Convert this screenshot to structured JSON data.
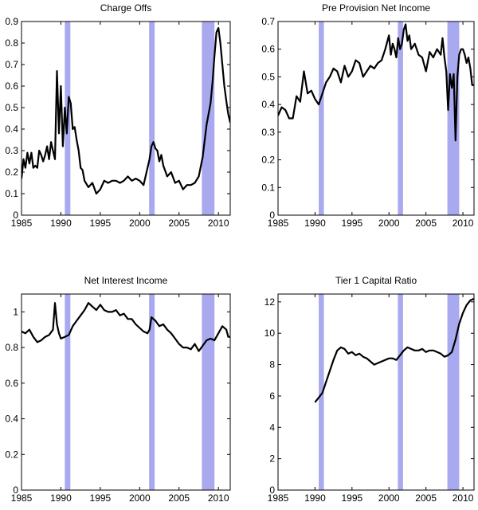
{
  "chart_data": [
    {
      "type": "line",
      "title": "Charge Offs",
      "xlabel": "",
      "ylabel": "",
      "xlim": [
        1985,
        2011.5
      ],
      "ylim": [
        0,
        0.9
      ],
      "xticks": [
        1985,
        1990,
        1995,
        2000,
        2005,
        2010
      ],
      "yticks": [
        0,
        0.1,
        0.2,
        0.3,
        0.4,
        0.5,
        0.6,
        0.7,
        0.8,
        0.9
      ],
      "recessions": [
        [
          1990.5,
          1991.2
        ],
        [
          2001.2,
          2001.9
        ],
        [
          2007.9,
          2009.5
        ]
      ],
      "series": [
        {
          "name": "Charge Offs",
          "x": [
            1985,
            1985.25,
            1985.5,
            1985.75,
            1986,
            1986.25,
            1986.5,
            1986.75,
            1987,
            1987.25,
            1987.5,
            1987.75,
            1988,
            1988.25,
            1988.5,
            1988.75,
            1989,
            1989.25,
            1989.5,
            1989.75,
            1990,
            1990.25,
            1990.5,
            1990.75,
            1991,
            1991.25,
            1991.5,
            1991.75,
            1992,
            1992.25,
            1992.5,
            1992.75,
            1993,
            1993.5,
            1994,
            1994.5,
            1995,
            1995.5,
            1996,
            1996.5,
            1997,
            1997.5,
            1998,
            1998.5,
            1999,
            1999.5,
            2000,
            2000.5,
            2001,
            2001.25,
            2001.5,
            2001.75,
            2002,
            2002.25,
            2002.5,
            2002.75,
            2003,
            2003.5,
            2004,
            2004.5,
            2005,
            2005.5,
            2006,
            2006.5,
            2007,
            2007.5,
            2008,
            2008.5,
            2009,
            2009.25,
            2009.5,
            2009.75,
            2010,
            2010.25,
            2010.5,
            2010.75,
            2011,
            2011.25,
            2011.5
          ],
          "values": [
            0.17,
            0.26,
            0.22,
            0.29,
            0.24,
            0.29,
            0.22,
            0.23,
            0.22,
            0.3,
            0.28,
            0.25,
            0.28,
            0.32,
            0.26,
            0.34,
            0.3,
            0.26,
            0.67,
            0.38,
            0.6,
            0.32,
            0.5,
            0.38,
            0.55,
            0.52,
            0.4,
            0.41,
            0.35,
            0.3,
            0.22,
            0.21,
            0.16,
            0.13,
            0.15,
            0.1,
            0.12,
            0.16,
            0.15,
            0.16,
            0.16,
            0.15,
            0.16,
            0.18,
            0.16,
            0.17,
            0.16,
            0.14,
            0.22,
            0.26,
            0.32,
            0.34,
            0.31,
            0.3,
            0.25,
            0.28,
            0.23,
            0.18,
            0.2,
            0.15,
            0.16,
            0.12,
            0.14,
            0.14,
            0.15,
            0.18,
            0.27,
            0.42,
            0.52,
            0.62,
            0.74,
            0.85,
            0.87,
            0.8,
            0.7,
            0.6,
            0.53,
            0.47,
            0.43
          ]
        }
      ]
    },
    {
      "type": "line",
      "title": "Pre Provision Net Income",
      "xlabel": "",
      "ylabel": "",
      "xlim": [
        1985,
        2011.5
      ],
      "ylim": [
        0,
        0.7
      ],
      "xticks": [
        1985,
        1990,
        1995,
        2000,
        2005,
        2010
      ],
      "yticks": [
        0,
        0.1,
        0.2,
        0.3,
        0.4,
        0.5,
        0.6,
        0.7
      ],
      "recessions": [
        [
          1990.5,
          1991.2
        ],
        [
          2001.2,
          2001.9
        ],
        [
          2007.9,
          2009.5
        ]
      ],
      "series": [
        {
          "name": "Pre Provision Net Income",
          "x": [
            1985,
            1985.5,
            1986,
            1986.5,
            1987,
            1987.5,
            1988,
            1988.5,
            1989,
            1989.5,
            1990,
            1990.5,
            1991,
            1991.5,
            1992,
            1992.5,
            1993,
            1993.5,
            1994,
            1994.5,
            1995,
            1995.5,
            1996,
            1996.5,
            1997,
            1997.5,
            1998,
            1998.5,
            1999,
            1999.5,
            2000,
            2000.25,
            2000.5,
            2000.75,
            2001,
            2001.25,
            2001.5,
            2001.75,
            2002,
            2002.25,
            2002.5,
            2002.75,
            2003,
            2003.5,
            2004,
            2004.5,
            2005,
            2005.5,
            2006,
            2006.5,
            2007,
            2007.25,
            2007.5,
            2007.75,
            2008,
            2008.25,
            2008.5,
            2008.75,
            2009,
            2009.25,
            2009.5,
            2009.75,
            2010,
            2010.25,
            2010.5,
            2010.75,
            2011,
            2011.25,
            2011.5
          ],
          "values": [
            0.36,
            0.39,
            0.38,
            0.35,
            0.35,
            0.43,
            0.41,
            0.52,
            0.44,
            0.45,
            0.42,
            0.4,
            0.44,
            0.48,
            0.5,
            0.53,
            0.52,
            0.48,
            0.54,
            0.5,
            0.52,
            0.56,
            0.55,
            0.5,
            0.52,
            0.54,
            0.53,
            0.55,
            0.56,
            0.6,
            0.65,
            0.58,
            0.62,
            0.6,
            0.57,
            0.64,
            0.6,
            0.62,
            0.67,
            0.69,
            0.63,
            0.65,
            0.6,
            0.62,
            0.58,
            0.57,
            0.52,
            0.59,
            0.57,
            0.6,
            0.58,
            0.64,
            0.57,
            0.52,
            0.38,
            0.51,
            0.46,
            0.51,
            0.27,
            0.5,
            0.58,
            0.6,
            0.6,
            0.58,
            0.55,
            0.57,
            0.53,
            0.47,
            0.47
          ]
        }
      ]
    },
    {
      "type": "line",
      "title": "Net Interest Income",
      "xlabel": "",
      "ylabel": "",
      "xlim": [
        1985,
        2011.5
      ],
      "ylim": [
        0,
        1.1
      ],
      "xticks": [
        1985,
        1990,
        1995,
        2000,
        2005,
        2010
      ],
      "yticks": [
        0,
        0.2,
        0.4,
        0.6,
        0.8,
        1
      ],
      "recessions": [
        [
          1990.5,
          1991.2
        ],
        [
          2001.2,
          2001.9
        ],
        [
          2007.9,
          2009.5
        ]
      ],
      "series": [
        {
          "name": "Net Interest Income",
          "x": [
            1985,
            1985.5,
            1986,
            1986.5,
            1987,
            1987.5,
            1988,
            1988.5,
            1989,
            1989.25,
            1989.5,
            1989.75,
            1990,
            1990.5,
            1991,
            1991.5,
            1992,
            1992.5,
            1993,
            1993.5,
            1994,
            1994.5,
            1995,
            1995.5,
            1996,
            1996.5,
            1997,
            1997.5,
            1998,
            1998.5,
            1999,
            1999.5,
            2000,
            2000.5,
            2001,
            2001.25,
            2001.5,
            2001.75,
            2002,
            2002.5,
            2003,
            2003.5,
            2004,
            2004.5,
            2005,
            2005.5,
            2006,
            2006.5,
            2007,
            2007.5,
            2008,
            2008.5,
            2009,
            2009.5,
            2010,
            2010.5,
            2011,
            2011.25,
            2011.5
          ],
          "values": [
            0.89,
            0.88,
            0.9,
            0.86,
            0.83,
            0.84,
            0.86,
            0.87,
            0.9,
            1.05,
            0.93,
            0.88,
            0.85,
            0.86,
            0.87,
            0.92,
            0.95,
            0.98,
            1.01,
            1.05,
            1.03,
            1.01,
            1.04,
            1.01,
            1.0,
            1.0,
            1.01,
            0.98,
            0.99,
            0.96,
            0.96,
            0.93,
            0.91,
            0.89,
            0.88,
            0.9,
            0.97,
            0.96,
            0.95,
            0.92,
            0.93,
            0.9,
            0.88,
            0.85,
            0.82,
            0.8,
            0.8,
            0.79,
            0.82,
            0.78,
            0.81,
            0.84,
            0.85,
            0.84,
            0.88,
            0.92,
            0.9,
            0.86,
            0.86
          ]
        }
      ]
    },
    {
      "type": "line",
      "title": "Tier 1 Capital Ratio",
      "xlabel": "",
      "ylabel": "",
      "xlim": [
        1985,
        2011.5
      ],
      "ylim": [
        0,
        12.5
      ],
      "xticks": [
        1985,
        1990,
        1995,
        2000,
        2005,
        2010
      ],
      "yticks": [
        0,
        2,
        4,
        6,
        8,
        10,
        12
      ],
      "recessions": [
        [
          1990.5,
          1991.2
        ],
        [
          2001.2,
          2001.9
        ],
        [
          2007.9,
          2009.5
        ]
      ],
      "series": [
        {
          "name": "Tier 1 Capital Ratio",
          "x": [
            1990,
            1990.5,
            1991,
            1991.5,
            1992,
            1992.5,
            1993,
            1993.5,
            1994,
            1994.5,
            1995,
            1995.5,
            1996,
            1996.5,
            1997,
            1997.5,
            1998,
            1998.5,
            1999,
            1999.5,
            2000,
            2000.5,
            2001,
            2001.5,
            2002,
            2002.5,
            2003,
            2003.5,
            2004,
            2004.5,
            2005,
            2005.5,
            2006,
            2006.5,
            2007,
            2007.5,
            2008,
            2008.5,
            2009,
            2009.5,
            2010,
            2010.5,
            2011,
            2011.5
          ],
          "values": [
            5.6,
            5.9,
            6.2,
            6.9,
            7.6,
            8.3,
            8.9,
            9.1,
            9.0,
            8.7,
            8.8,
            8.6,
            8.7,
            8.5,
            8.4,
            8.2,
            8.0,
            8.1,
            8.2,
            8.3,
            8.4,
            8.4,
            8.3,
            8.6,
            8.9,
            9.1,
            9.0,
            8.9,
            8.9,
            9.0,
            8.8,
            8.9,
            8.9,
            8.8,
            8.7,
            8.5,
            8.6,
            8.8,
            9.6,
            10.6,
            11.3,
            11.8,
            12.1,
            12.2
          ]
        }
      ]
    }
  ]
}
